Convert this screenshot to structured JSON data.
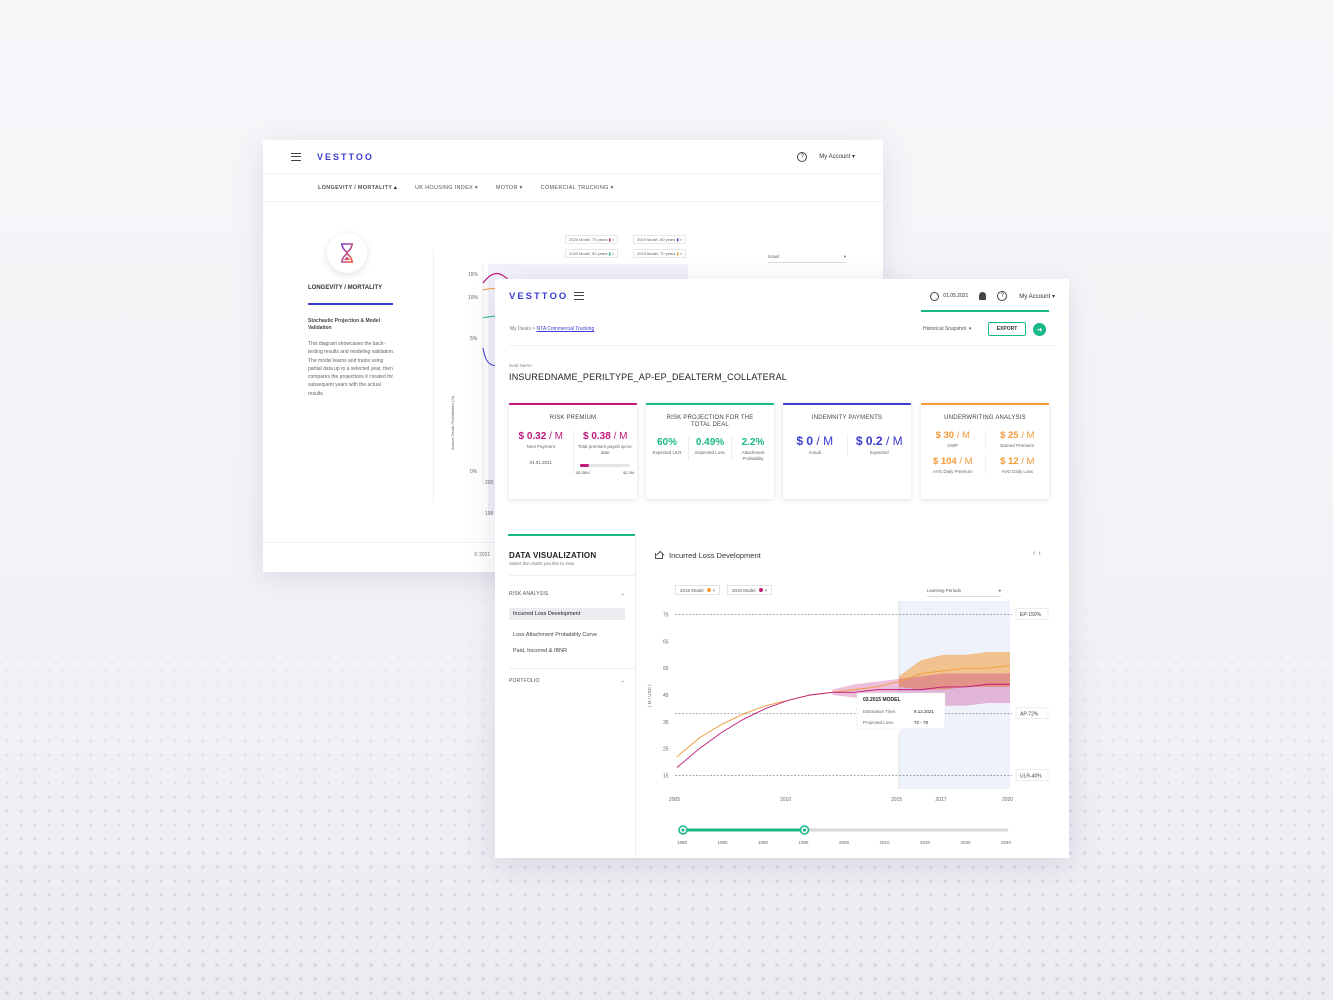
{
  "back_window": {
    "logo": "VESTTOO",
    "account": "My Account",
    "nav": [
      {
        "label": "LONGEVITY / MORTALITY"
      },
      {
        "label": "UK HOUSING INDEX"
      },
      {
        "label": "MOTOR"
      },
      {
        "label": "COMERCIAL TRUCKING"
      }
    ],
    "product_title": "LONGEVITY / MORTALITY",
    "product_subtitle": "Stochastic Projection & Model Validation",
    "description": "This diagram showcases the back-testing results and modeling validation. The model learns and trains using partial data up to a selected year, then compares the projections it created for subsequent years with the actual results.",
    "legend": [
      "2025 Model, 70 years",
      "2019 Model, 80 years",
      "2020 Model, 80 years",
      "2015 Model, 70 years"
    ],
    "y_ticks": [
      "15%",
      "10%",
      "5%",
      "0%"
    ],
    "x_ticks": [
      "200",
      "199"
    ],
    "y_axis_label": "Annual Death Probabilities (%)",
    "select_value": "Israel",
    "copyright": "© 2021"
  },
  "front_window": {
    "logo": "VESTTOO",
    "date": "01.05.2021",
    "account": "My Account",
    "breadcrumb": {
      "root": "My Deals",
      "separator": ">",
      "current": "NTA Commercial Trucking"
    },
    "historical_snapshot": "Historical Snapshot",
    "export_label": "EXPORT",
    "deal_label": "Deal Name:",
    "deal_name": "INSUREDNAME_PERILTYPE_AP-EP_DEALTERM_COLLATERAL",
    "kpis": {
      "risk_premium": {
        "title": "RISK PREMIUM",
        "color": "#c0187a",
        "next_value": "$ 0.32",
        "next_unit": "/ M",
        "next_label": "Next Payment",
        "next_date": "04.01.2021",
        "total_value": "$ 0.38",
        "total_unit": "/ M",
        "total_label": "Total premium payed up-to-date",
        "progress_fraction": 0.17,
        "progress_min": "$0.38M",
        "progress_max": "$2.2M"
      },
      "risk_projection": {
        "title": "RISK PROJECTION FOR THE TOTAL DEAL",
        "color": "#19b889",
        "items": [
          {
            "value": "60%",
            "label": "Expected ULR"
          },
          {
            "value": "0.49%",
            "label": "Expected Loss"
          },
          {
            "value": "2.2%",
            "label": "Attachment Probability"
          }
        ]
      },
      "indemnity": {
        "title": "INDEMNITY PAYMENTS",
        "color": "#3c3ccf",
        "items": [
          {
            "value": "$ 0",
            "unit": "/ M",
            "label": "Actual"
          },
          {
            "value": "$ 0.2",
            "unit": "/ M",
            "label": "Expected"
          }
        ]
      },
      "underwriting": {
        "title": "UNDERWRITING ANALYSIS",
        "color": "#f39a36",
        "items": [
          {
            "value": "$ 30",
            "unit": "/ M",
            "label": "GWP"
          },
          {
            "value": "$ 25",
            "unit": "/ M",
            "label": "Earned Premium"
          },
          {
            "value": "$ 104",
            "unit": "/ M",
            "label": "AVG Daily Premium"
          },
          {
            "value": "$ 12",
            "unit": "/ M",
            "label": "AVG Daily Loss"
          }
        ]
      }
    },
    "data_viz": {
      "title": "DATA VISUALIZATION",
      "subtitle": "Select the charts you like to view",
      "section_risk": "RISK ANALYSIS",
      "items": [
        {
          "label": "Incurred Loss Development",
          "selected": true
        },
        {
          "label": "Loss Attachment Probability Curve",
          "selected": false
        },
        {
          "label": "Paid, Incurred & IBNR",
          "selected": false
        }
      ],
      "section_portfolio": "PORTFOLIO"
    },
    "chart": {
      "title": "Incurred Loss Development",
      "chips": [
        {
          "label": "2015 Model",
          "color": "#f39a36"
        },
        {
          "label": "2010 Model",
          "color": "#c0187a"
        }
      ],
      "period_select": "Learning Periods",
      "y_axis_label": "( M / USD )",
      "tooltip": {
        "title": "03.2015 MODEL",
        "row1_label": "Estimation Time:",
        "row1_value": "9.12.2021",
        "row2_label": "Projected Loss:",
        "row2_value": "72 - 78"
      },
      "slider_ticks": [
        "1980",
        "1985",
        "1990",
        "1995",
        "2000",
        "2010",
        "2020",
        "2030",
        "2040"
      ],
      "slider_range": [
        "1980",
        "1995"
      ]
    }
  },
  "chart_data": {
    "type": "line",
    "title": "Incurred Loss Development",
    "ylabel": "( M / USD )",
    "xlabel": "",
    "x_ticks": [
      2005,
      2010,
      2015,
      2017,
      2020
    ],
    "y_ticks": [
      15,
      25,
      35,
      45,
      55,
      65,
      75
    ],
    "ylim": [
      10,
      80
    ],
    "reference_lines": [
      {
        "label": "EP-150%",
        "value": 75
      },
      {
        "label": "AP-72%",
        "value": 38
      },
      {
        "label": "ULR-40%",
        "value": 15
      }
    ],
    "vertical_marker": 2015,
    "series": [
      {
        "name": "2015 Model",
        "color": "#f39a36",
        "x": [
          2005,
          2006,
          2007,
          2008,
          2009,
          2010,
          2011,
          2012,
          2013,
          2014,
          2015,
          2016,
          2017,
          2018,
          2019,
          2020
        ],
        "y": [
          22,
          29,
          34,
          38,
          41,
          43,
          45,
          46,
          47,
          48,
          50,
          53,
          54,
          55,
          55,
          56
        ],
        "band_upper": [
          null,
          null,
          null,
          null,
          null,
          null,
          null,
          null,
          null,
          null,
          52,
          58,
          60,
          60,
          61,
          61
        ],
        "band_lower": [
          null,
          null,
          null,
          null,
          null,
          null,
          null,
          null,
          null,
          null,
          48,
          47,
          47,
          48,
          48,
          48
        ]
      },
      {
        "name": "2010 Model",
        "color": "#c0187a",
        "x": [
          2005,
          2006,
          2007,
          2008,
          2009,
          2010,
          2011,
          2012,
          2013,
          2014,
          2015,
          2016,
          2017,
          2018,
          2019,
          2020
        ],
        "y": [
          18,
          25,
          31,
          36,
          40,
          43,
          45,
          46,
          46,
          47,
          47,
          47,
          48,
          48,
          49,
          49
        ],
        "band_upper": [
          null,
          null,
          null,
          null,
          null,
          null,
          null,
          47,
          49,
          50,
          51,
          52,
          53,
          53,
          53,
          53
        ],
        "band_lower": [
          null,
          null,
          null,
          null,
          null,
          null,
          null,
          45,
          44,
          43,
          42,
          41,
          41,
          41,
          42,
          42
        ]
      }
    ],
    "legend": "top-left",
    "grid": false
  }
}
